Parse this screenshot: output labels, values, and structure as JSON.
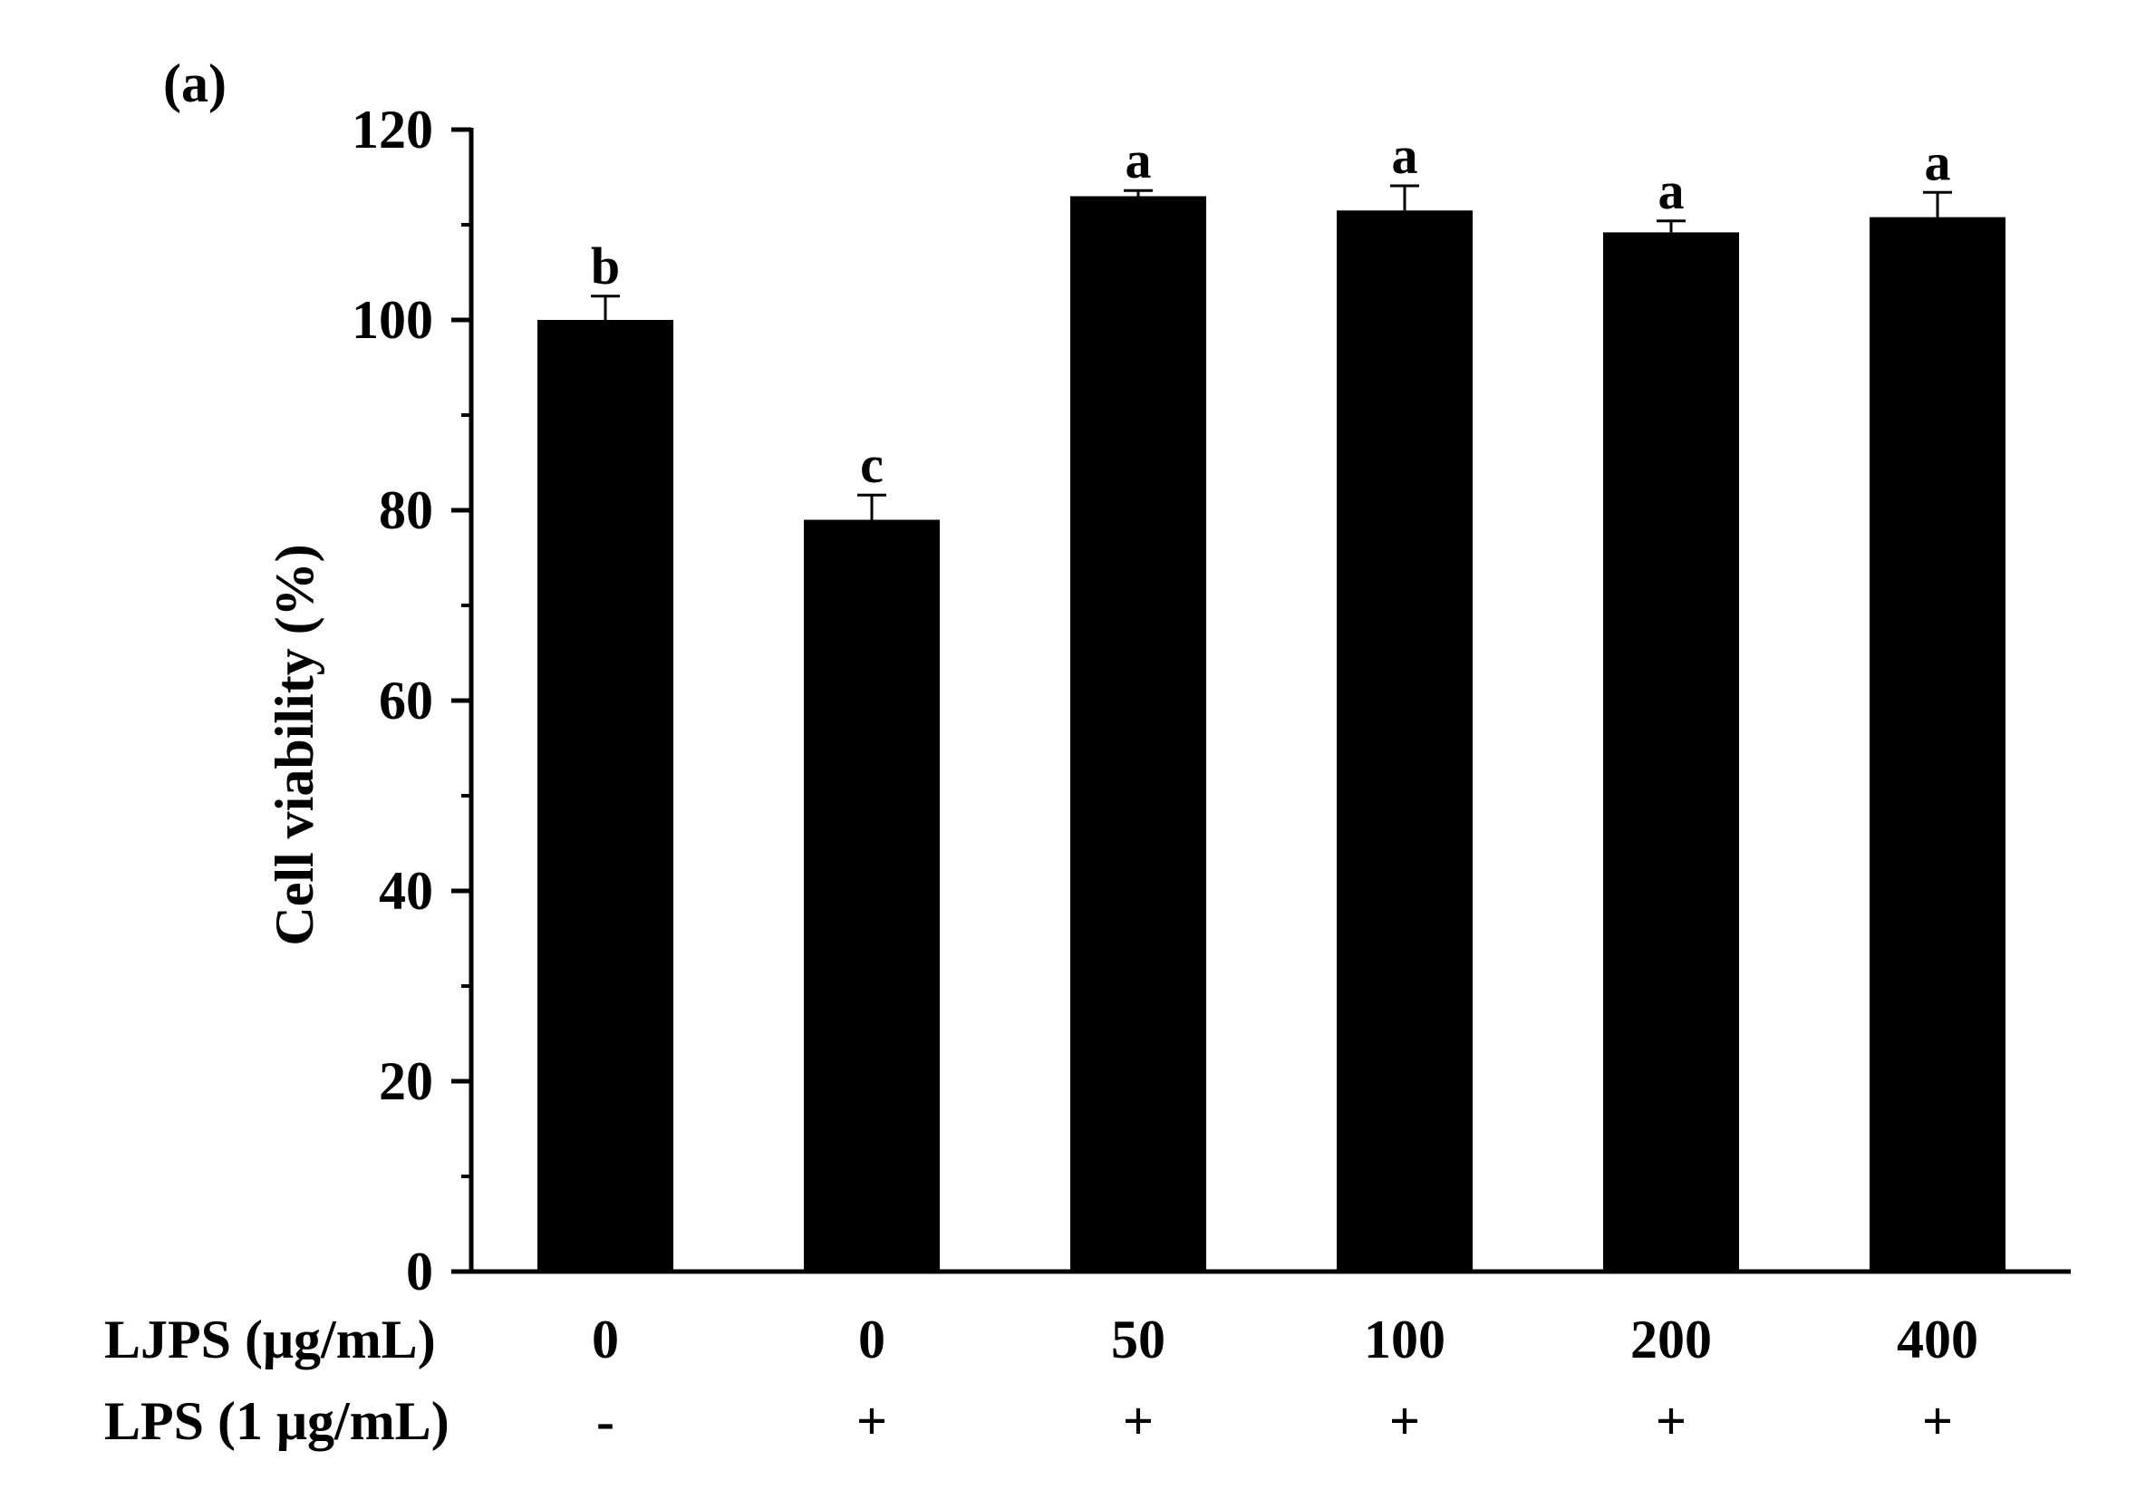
{
  "chart_data": {
    "type": "bar",
    "panel_label": "(a)",
    "ylabel": "Cell viability (%)",
    "xlabel": "",
    "ylim": [
      0,
      120
    ],
    "y_ticks": [
      0,
      20,
      40,
      60,
      80,
      100,
      120
    ],
    "y_tick_labels": [
      "0",
      "20",
      "40",
      "60",
      "80",
      "100",
      "120"
    ],
    "y_minor_step": 10,
    "grid": false,
    "legend": "none",
    "bar_color": "#000000",
    "row_labels": [
      "LJPS (μg/mL)",
      "LPS (1 μg/mL)"
    ],
    "categories": [
      "0",
      "0",
      "50",
      "100",
      "200",
      "400"
    ],
    "lps": [
      "-",
      "+",
      "+",
      "+",
      "+",
      "+"
    ],
    "values": [
      100,
      79,
      113,
      111.5,
      109.2,
      110.8
    ],
    "errors": [
      2.5,
      2.6,
      0.6,
      2.6,
      1.2,
      2.6
    ],
    "significance": [
      "b",
      "c",
      "a",
      "a",
      "a",
      "a"
    ]
  }
}
